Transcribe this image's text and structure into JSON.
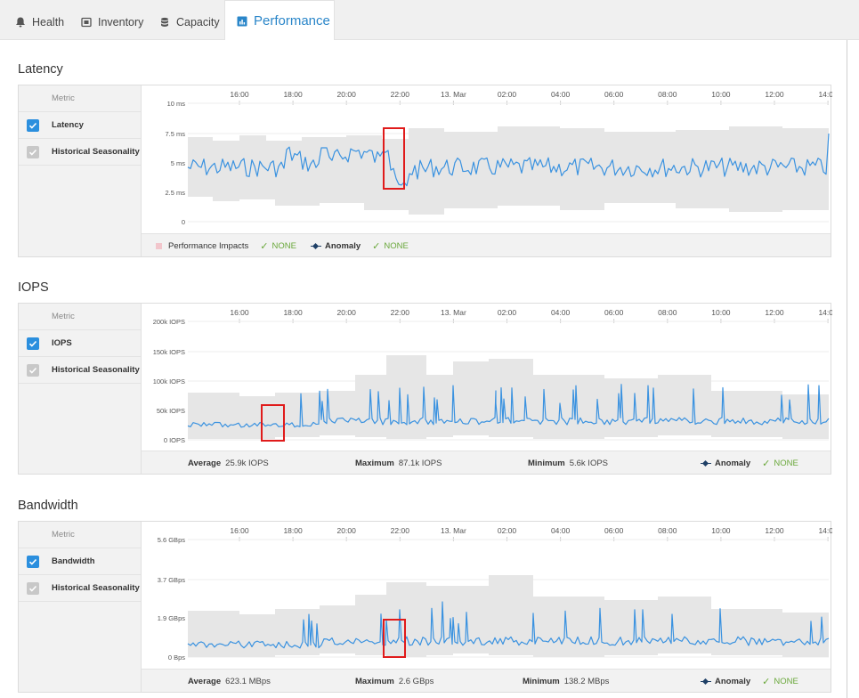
{
  "tabs": [
    {
      "label": "Health",
      "icon": "bell-icon"
    },
    {
      "label": "Inventory",
      "icon": "inventory-icon"
    },
    {
      "label": "Capacity",
      "icon": "database-icon"
    },
    {
      "label": "Performance",
      "icon": "bar-chart-icon",
      "active": true
    }
  ],
  "time_labels": [
    "16:00",
    "18:00",
    "20:00",
    "22:00",
    "13. Mar",
    "02:00",
    "04:00",
    "06:00",
    "08:00",
    "10:00",
    "12:00",
    "14:00"
  ],
  "metric_header": "Metric",
  "colors": {
    "line": "#3a92e0",
    "band": "#e6e6e6",
    "highlight": "#e01b1b",
    "accent": "#2a86c9",
    "ok": "#6aa83b"
  },
  "latency": {
    "title": "Latency",
    "metrics": [
      {
        "label": "Latency",
        "checked": true,
        "style": "primary"
      },
      {
        "label": "Historical Seasonality",
        "checked": true,
        "style": "muted"
      }
    ],
    "y_ticks": [
      "10 ms",
      "7.5 ms",
      "5 ms",
      "2.5 ms",
      "0"
    ],
    "footer": {
      "impacts_label": "Performance Impacts",
      "impacts_value": "NONE",
      "anomaly_label": "Anomaly",
      "anomaly_value": "NONE"
    }
  },
  "iops": {
    "title": "IOPS",
    "metrics": [
      {
        "label": "IOPS",
        "checked": true,
        "style": "primary"
      },
      {
        "label": "Historical Seasonality",
        "checked": true,
        "style": "muted"
      }
    ],
    "y_ticks": [
      "200k IOPS",
      "150k IOPS",
      "100k IOPS",
      "50k IOPS",
      "0 IOPS"
    ],
    "footer": {
      "average_label": "Average",
      "average_value": "25.9k IOPS",
      "maximum_label": "Maximum",
      "maximum_value": "87.1k IOPS",
      "minimum_label": "Minimum",
      "minimum_value": "5.6k IOPS",
      "anomaly_label": "Anomaly",
      "anomaly_value": "NONE"
    }
  },
  "bandwidth": {
    "title": "Bandwidth",
    "metrics": [
      {
        "label": "Bandwidth",
        "checked": true,
        "style": "primary"
      },
      {
        "label": "Historical Seasonality",
        "checked": true,
        "style": "muted"
      }
    ],
    "y_ticks": [
      "5.6 GBps",
      "3.7 GBps",
      "1.9 GBps",
      "0 Bps"
    ],
    "footer": {
      "average_label": "Average",
      "average_value": "623.1 MBps",
      "maximum_label": "Maximum",
      "maximum_value": "2.6 GBps",
      "minimum_label": "Minimum",
      "minimum_value": "138.2 MBps",
      "anomaly_label": "Anomaly",
      "anomaly_value": "NONE"
    }
  }
}
